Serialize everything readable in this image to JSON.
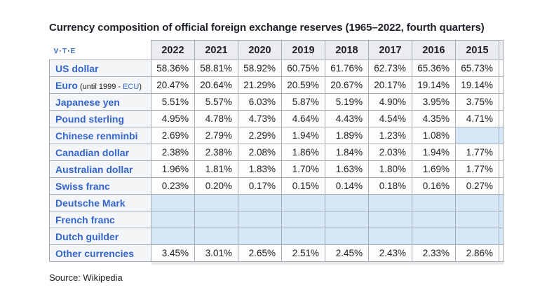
{
  "chart_data": {
    "type": "table",
    "title": "Currency composition of official foreign exchange reserves (1965–2022, fourth quarters)",
    "columns": [
      "2022",
      "2021",
      "2020",
      "2019",
      "2018",
      "2017",
      "2016",
      "2015"
    ],
    "rows": [
      {
        "label": "US dollar",
        "values": [
          "58.36%",
          "58.81%",
          "58.92%",
          "60.75%",
          "61.76%",
          "62.73%",
          "65.36%",
          "65.73%"
        ]
      },
      {
        "label": "Euro",
        "note_pre": " (until 1999 - ",
        "note_link": "ECU",
        "note_post": ")",
        "values": [
          "20.47%",
          "20.64%",
          "21.29%",
          "20.59%",
          "20.67%",
          "20.17%",
          "19.14%",
          "19.14%"
        ]
      },
      {
        "label": "Japanese yen",
        "values": [
          "5.51%",
          "5.57%",
          "6.03%",
          "5.87%",
          "5.19%",
          "4.90%",
          "3.95%",
          "3.75%"
        ]
      },
      {
        "label": "Pound sterling",
        "values": [
          "4.95%",
          "4.78%",
          "4.73%",
          "4.64%",
          "4.43%",
          "4.54%",
          "4.35%",
          "4.71%"
        ]
      },
      {
        "label": "Chinese renminbi",
        "values": [
          "2.69%",
          "2.79%",
          "2.29%",
          "1.94%",
          "1.89%",
          "1.23%",
          "1.08%",
          ""
        ]
      },
      {
        "label": "Canadian dollar",
        "values": [
          "2.38%",
          "2.38%",
          "2.08%",
          "1.86%",
          "1.84%",
          "2.03%",
          "1.94%",
          "1.77%"
        ]
      },
      {
        "label": "Australian dollar",
        "values": [
          "1.96%",
          "1.81%",
          "1.83%",
          "1.70%",
          "1.63%",
          "1.80%",
          "1.69%",
          "1.77%"
        ]
      },
      {
        "label": "Swiss franc",
        "values": [
          "0.23%",
          "0.20%",
          "0.17%",
          "0.15%",
          "0.14%",
          "0.18%",
          "0.16%",
          "0.27%"
        ]
      },
      {
        "label": "Deutsche Mark",
        "values": [
          "",
          "",
          "",
          "",
          "",
          "",
          "",
          ""
        ]
      },
      {
        "label": "French franc",
        "values": [
          "",
          "",
          "",
          "",
          "",
          "",
          "",
          ""
        ]
      },
      {
        "label": "Dutch guilder",
        "values": [
          "",
          "",
          "",
          "",
          "",
          "",
          "",
          ""
        ]
      },
      {
        "label": "Other currencies",
        "values": [
          "3.45%",
          "3.01%",
          "2.65%",
          "2.51%",
          "2.45%",
          "2.43%",
          "2.33%",
          "2.86%"
        ]
      }
    ],
    "source": "Source: Wikipedia",
    "layout": {
      "legend": "none",
      "grid": "table-borders",
      "empty_cells": "highlighted light blue"
    }
  },
  "vte": {
    "view": "v",
    "talk": "t",
    "edit": "e",
    "separator": "·"
  },
  "colors": {
    "header_bg": "#eaecf0",
    "label_bg": "#f4f5f6",
    "cell_bg": "#fdfdfe",
    "empty_cell_bg": "#d6e7f8",
    "border": "#a6adb4",
    "link_blue": "#3366cc",
    "text": "#202122",
    "title_text": "#1d2129"
  }
}
